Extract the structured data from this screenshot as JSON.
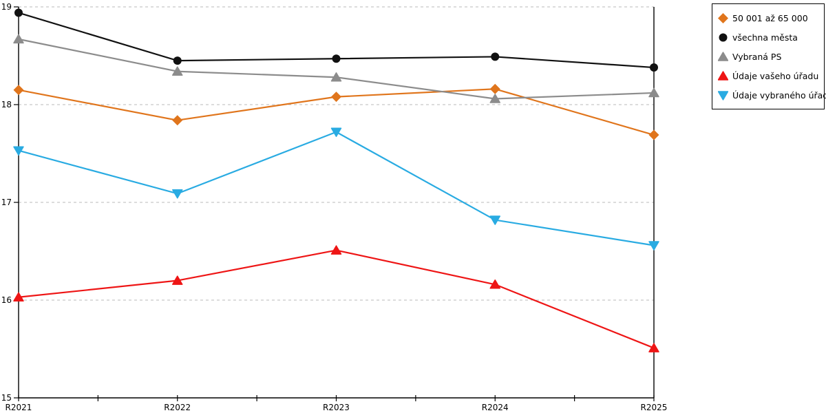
{
  "chart_data": {
    "type": "line",
    "title": "",
    "xlabel": "",
    "ylabel": "",
    "categories": [
      "R2021",
      "R2022",
      "R2023",
      "R2024",
      "R2025"
    ],
    "ylim": [
      15,
      19
    ],
    "y_ticks": [
      15,
      16,
      17,
      18,
      19
    ],
    "grid": "horizontal-dashed",
    "legend_position": "top-right",
    "series": [
      {
        "name": "50 001 až 65 000",
        "color": "#e0751c",
        "marker": "diamond",
        "values": [
          18.15,
          17.84,
          18.08,
          18.16,
          17.69
        ]
      },
      {
        "name": "všechna města",
        "color": "#111111",
        "marker": "circle",
        "values": [
          18.94,
          18.45,
          18.47,
          18.49,
          18.38
        ]
      },
      {
        "name": "Vybraná PS",
        "color": "#8c8c8c",
        "marker": "triangle-up",
        "values": [
          18.67,
          18.34,
          18.28,
          18.06,
          18.12
        ]
      },
      {
        "name": "Údaje vašeho úřadu",
        "color": "#ee1515",
        "marker": "triangle-up",
        "values": [
          16.03,
          16.2,
          16.51,
          16.16,
          15.51
        ]
      },
      {
        "name": "Údaje vybraného úřadu",
        "color": "#29abe2",
        "marker": "triangle-down",
        "values": [
          17.53,
          17.09,
          17.72,
          16.82,
          16.56
        ]
      }
    ],
    "colors": {
      "grid": "#b9b9b9",
      "axis": "#000000",
      "background": "#ffffff"
    }
  }
}
